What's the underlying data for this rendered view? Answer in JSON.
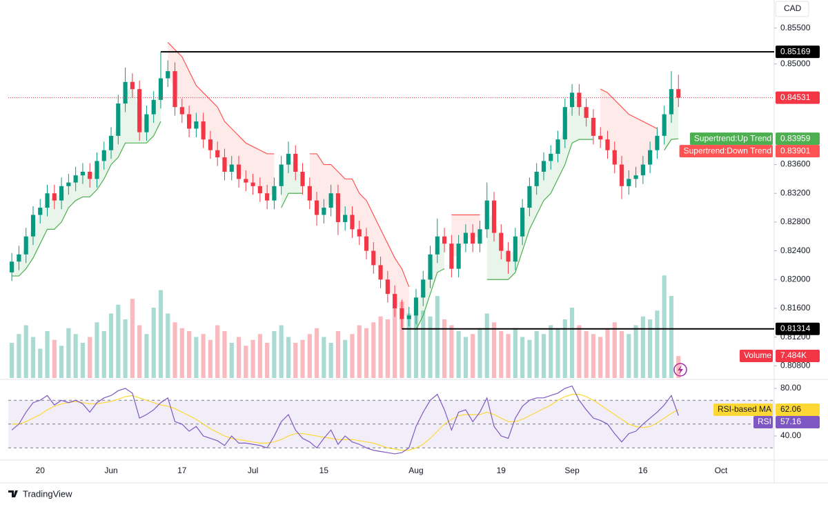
{
  "chart_data": {
    "type": "candlestick",
    "currency": "CAD",
    "footer": "TradingView",
    "up_color": "#089981",
    "down_color": "#f23645",
    "grid": false,
    "categories": [
      null,
      null,
      null,
      null,
      "20",
      null,
      null,
      null,
      null,
      null,
      null,
      null,
      null,
      null,
      "Jun",
      null,
      null,
      null,
      null,
      null,
      null,
      null,
      null,
      null,
      "17",
      null,
      null,
      null,
      null,
      null,
      null,
      null,
      null,
      null,
      "Jul",
      null,
      null,
      null,
      null,
      null,
      null,
      null,
      null,
      null,
      "15",
      null,
      null,
      null,
      null,
      null,
      null,
      null,
      null,
      null,
      null,
      null,
      null,
      "Aug",
      null,
      null,
      null,
      null,
      null,
      null,
      null,
      null,
      null,
      null,
      null,
      "19",
      null,
      null,
      null,
      null,
      null,
      null,
      null,
      null,
      null,
      "Sep",
      null,
      null,
      null,
      null,
      null,
      null,
      null,
      null,
      null,
      "16",
      null,
      null,
      null,
      null,
      null,
      null,
      null,
      null,
      null,
      null,
      "Oct",
      null,
      null,
      null,
      null,
      null,
      null,
      null
    ],
    "open": [
      0.821,
      0.8225,
      0.8235,
      0.826,
      0.829,
      0.83,
      0.832,
      0.831,
      0.833,
      0.8335,
      0.8345,
      0.835,
      0.834,
      0.8365,
      0.838,
      0.84,
      0.8445,
      0.8475,
      0.8465,
      0.8405,
      0.843,
      0.845,
      0.848,
      0.849,
      0.844,
      0.843,
      0.841,
      0.842,
      0.8395,
      0.838,
      0.837,
      0.835,
      0.836,
      0.834,
      0.8335,
      0.833,
      0.832,
      0.831,
      0.833,
      0.836,
      0.8375,
      0.835,
      0.833,
      0.831,
      0.829,
      0.83,
      0.832,
      0.828,
      0.829,
      0.827,
      0.826,
      0.824,
      0.822,
      0.82,
      0.818,
      0.816,
      0.8145,
      0.815,
      0.8175,
      0.82,
      0.8235,
      0.826,
      0.825,
      0.8215,
      0.825,
      0.8265,
      0.825,
      0.827,
      0.831,
      0.8265,
      0.824,
      0.8225,
      0.826,
      0.83,
      0.833,
      0.835,
      0.8365,
      0.8375,
      0.8395,
      0.844,
      0.846,
      0.844,
      0.8425,
      0.84,
      0.8395,
      0.838,
      0.836,
      0.833,
      0.834,
      0.8345,
      0.836,
      0.838,
      0.84,
      0.843,
      0.8465,
      null,
      null,
      null,
      null,
      null,
      null,
      null,
      null,
      null,
      null,
      null,
      null,
      null
    ],
    "high": [
      0.8237,
      0.8247,
      0.8272,
      0.8302,
      0.8312,
      0.8332,
      0.8332,
      0.8342,
      0.8347,
      0.8357,
      0.8362,
      0.8362,
      0.8377,
      0.8392,
      0.8412,
      0.8457,
      0.8495,
      0.8487,
      0.8477,
      0.8442,
      0.8462,
      0.85169,
      0.8505,
      0.8502,
      0.8452,
      0.8442,
      0.8432,
      0.8432,
      0.8407,
      0.8392,
      0.8382,
      0.8372,
      0.8372,
      0.8352,
      0.8347,
      0.8342,
      0.8332,
      0.8342,
      0.8372,
      0.8392,
      0.8387,
      0.8362,
      0.8342,
      0.8322,
      0.8312,
      0.8332,
      0.8332,
      0.8302,
      0.8302,
      0.8282,
      0.8272,
      0.8252,
      0.8232,
      0.8212,
      0.8192,
      0.8172,
      0.8162,
      0.8187,
      0.8212,
      0.8247,
      0.8285,
      0.8272,
      0.8262,
      0.8262,
      0.8277,
      0.8277,
      0.8282,
      0.8335,
      0.8322,
      0.8277,
      0.8252,
      0.8272,
      0.8312,
      0.8342,
      0.8362,
      0.8377,
      0.8387,
      0.8407,
      0.8452,
      0.8472,
      0.8472,
      0.8452,
      0.8437,
      0.8412,
      0.8407,
      0.8392,
      0.8372,
      0.8352,
      0.8357,
      0.8372,
      0.8392,
      0.8412,
      0.8442,
      0.849,
      0.8485,
      null,
      null,
      null,
      null,
      null,
      null,
      null,
      null,
      null,
      null,
      null,
      null,
      null
    ],
    "low": [
      0.8198,
      0.8213,
      0.8223,
      0.8248,
      0.8278,
      0.8288,
      0.8298,
      0.8298,
      0.8318,
      0.8323,
      0.8333,
      0.8328,
      0.8328,
      0.8353,
      0.8368,
      0.8388,
      0.8433,
      0.8453,
      0.8393,
      0.8393,
      0.8418,
      0.8438,
      0.8468,
      0.8428,
      0.8418,
      0.8398,
      0.8398,
      0.8383,
      0.8368,
      0.8358,
      0.8338,
      0.8338,
      0.8328,
      0.8323,
      0.8318,
      0.8308,
      0.8298,
      0.8298,
      0.8318,
      0.8348,
      0.8338,
      0.8318,
      0.8298,
      0.8275,
      0.8278,
      0.8288,
      0.8262,
      0.8268,
      0.8258,
      0.8248,
      0.8228,
      0.8208,
      0.8188,
      0.8168,
      0.8148,
      0.81314,
      0.8135,
      0.8138,
      0.8163,
      0.8188,
      0.8223,
      0.8238,
      0.8203,
      0.8203,
      0.8238,
      0.8238,
      0.8238,
      0.8258,
      0.8253,
      0.8228,
      0.8208,
      0.8213,
      0.8248,
      0.8288,
      0.8318,
      0.8338,
      0.8353,
      0.8363,
      0.8383,
      0.8428,
      0.8428,
      0.8413,
      0.8388,
      0.8383,
      0.8368,
      0.8348,
      0.8312,
      0.8318,
      0.8328,
      0.8333,
      0.8348,
      0.8368,
      0.8388,
      0.8418,
      0.844,
      null,
      null,
      null,
      null,
      null,
      null,
      null,
      null,
      null,
      null,
      null,
      null,
      null
    ],
    "close": [
      0.8225,
      0.8235,
      0.826,
      0.829,
      0.83,
      0.832,
      0.831,
      0.833,
      0.8335,
      0.8345,
      0.835,
      0.834,
      0.8365,
      0.838,
      0.84,
      0.8445,
      0.8475,
      0.8465,
      0.8405,
      0.843,
      0.845,
      0.848,
      0.849,
      0.844,
      0.843,
      0.841,
      0.842,
      0.8395,
      0.838,
      0.837,
      0.835,
      0.836,
      0.834,
      0.8335,
      0.833,
      0.832,
      0.831,
      0.833,
      0.836,
      0.8375,
      0.835,
      0.833,
      0.831,
      0.829,
      0.83,
      0.832,
      0.828,
      0.829,
      0.827,
      0.826,
      0.824,
      0.822,
      0.82,
      0.818,
      0.816,
      0.8145,
      0.815,
      0.8175,
      0.82,
      0.8235,
      0.826,
      0.825,
      0.8215,
      0.825,
      0.8265,
      0.825,
      0.827,
      0.831,
      0.8265,
      0.824,
      0.8225,
      0.826,
      0.83,
      0.833,
      0.835,
      0.8365,
      0.8375,
      0.8395,
      0.844,
      0.846,
      0.844,
      0.8425,
      0.84,
      0.8395,
      0.838,
      0.836,
      0.833,
      0.834,
      0.8345,
      0.836,
      0.838,
      0.84,
      0.843,
      0.8465,
      0.84531,
      null,
      null,
      null,
      null,
      null,
      null,
      null,
      null,
      null,
      null,
      null,
      null,
      null
    ],
    "ylim": [
      0.8063,
      0.8589
    ],
    "yticks": [
      {
        "value": 0.855,
        "label": "0.85500"
      },
      {
        "value": 0.85,
        "label": "0.85000"
      },
      {
        "value": 0.836,
        "label": "0.83600"
      },
      {
        "value": 0.832,
        "label": "0.83200"
      },
      {
        "value": 0.828,
        "label": "0.82800"
      },
      {
        "value": 0.824,
        "label": "0.82400"
      },
      {
        "value": 0.82,
        "label": "0.82000"
      },
      {
        "value": 0.816,
        "label": "0.81600"
      },
      {
        "value": 0.812,
        "label": "0.81200"
      },
      {
        "value": 0.808,
        "label": "0.80800"
      }
    ],
    "hlines": [
      0.85169,
      0.81314
    ],
    "supertrend": [
      {
        "name": "Supertrend:Up Trend",
        "color": "#4caf50",
        "last_value": 0.83959,
        "values": [
          0.8205,
          0.8205,
          0.8215,
          0.823,
          0.825,
          0.827,
          0.827,
          0.828,
          0.83,
          0.831,
          0.8315,
          0.8315,
          0.8325,
          0.834,
          0.836,
          0.837,
          0.839,
          0.839,
          0.839,
          0.839,
          0.84,
          0.842,
          null,
          null,
          null,
          null,
          null,
          null,
          null,
          null,
          null,
          null,
          null,
          null,
          null,
          null,
          null,
          null,
          0.83,
          0.832,
          0.832,
          0.832,
          null,
          null,
          null,
          null,
          null,
          null,
          null,
          null,
          null,
          null,
          null,
          null,
          null,
          null,
          null,
          0.813,
          0.815,
          0.818,
          0.821,
          0.8215,
          null,
          null,
          null,
          null,
          null,
          0.82,
          0.82,
          0.82,
          0.82,
          0.821,
          0.824,
          0.827,
          0.829,
          0.831,
          0.832,
          0.834,
          0.836,
          0.839,
          0.8395,
          0.8395,
          0.8395,
          null,
          null,
          null,
          null,
          null,
          null,
          null,
          null,
          null,
          0.838,
          0.8395,
          0.83959,
          null,
          null,
          null,
          null,
          null,
          null,
          null,
          null,
          null,
          null,
          null,
          null,
          null
        ]
      },
      {
        "name": "Supertrend:Down Trend",
        "color": "#ff5252",
        "last_value": 0.83901,
        "values": [
          null,
          null,
          null,
          null,
          null,
          null,
          null,
          null,
          null,
          null,
          null,
          null,
          null,
          null,
          null,
          null,
          null,
          null,
          null,
          null,
          null,
          null,
          0.853,
          0.852,
          0.851,
          0.849,
          0.847,
          0.846,
          0.845,
          0.844,
          0.842,
          0.841,
          0.84,
          0.839,
          0.8385,
          0.838,
          0.8375,
          0.8375,
          null,
          null,
          null,
          null,
          0.8375,
          0.8375,
          0.836,
          0.836,
          0.835,
          0.834,
          0.834,
          0.832,
          0.831,
          0.829,
          0.827,
          0.825,
          0.823,
          0.8215,
          0.819,
          null,
          null,
          null,
          null,
          null,
          0.829,
          0.829,
          0.829,
          0.829,
          0.829,
          null,
          null,
          null,
          null,
          null,
          null,
          null,
          null,
          null,
          null,
          null,
          null,
          null,
          null,
          null,
          null,
          0.8465,
          0.846,
          0.845,
          0.844,
          0.843,
          0.8425,
          0.842,
          0.8415,
          0.841,
          null,
          null,
          null,
          null,
          null,
          null,
          null,
          null,
          null,
          null,
          null,
          null,
          null,
          null,
          null,
          null
        ]
      }
    ],
    "volume": {
      "name": "Volume",
      "color": "#f23645",
      "ylim": [
        0,
        40000
      ],
      "values": [
        12000,
        15000,
        18000,
        14000,
        10000,
        16000,
        13000,
        11000,
        17000,
        15000,
        12000,
        14000,
        19000,
        16000,
        22000,
        25000,
        20000,
        27000,
        18000,
        15000,
        24000,
        30000,
        22000,
        19000,
        17000,
        16000,
        14000,
        15000,
        13000,
        18000,
        16000,
        12000,
        14000,
        11000,
        13000,
        15000,
        12000,
        16000,
        18000,
        14000,
        12000,
        13000,
        15000,
        17000,
        14000,
        12000,
        16000,
        13000,
        15000,
        18000,
        17000,
        19000,
        21000,
        20000,
        24000,
        26000,
        22000,
        25000,
        23000,
        21000,
        28000,
        20000,
        18000,
        16000,
        14000,
        15000,
        17000,
        22000,
        19000,
        16000,
        15000,
        17000,
        14000,
        13000,
        16000,
        15000,
        18000,
        17000,
        20000,
        24000,
        18000,
        16000,
        15000,
        14000,
        17000,
        19000,
        16000,
        15000,
        18000,
        21000,
        20000,
        23000,
        35000,
        28000,
        7484,
        null,
        null,
        null,
        null,
        null,
        null,
        null,
        null,
        null,
        null,
        null,
        null,
        null
      ],
      "value_labels": [
        null,
        null,
        null,
        null,
        null,
        null,
        null,
        null,
        null,
        null,
        null,
        null,
        null,
        null,
        null,
        null,
        null,
        null,
        null,
        null,
        null,
        null,
        null,
        null,
        null,
        null,
        null,
        null,
        null,
        null,
        null,
        null,
        null,
        null,
        null,
        null,
        null,
        null,
        null,
        null,
        null,
        null,
        null,
        null,
        null,
        null,
        null,
        null,
        null,
        null,
        null,
        null,
        null,
        null,
        null,
        null,
        null,
        null,
        null,
        null,
        null,
        null,
        null,
        null,
        null,
        null,
        null,
        null,
        null,
        null,
        null,
        null,
        null,
        null,
        null,
        null,
        null,
        null,
        null,
        null,
        null,
        null,
        null,
        null,
        null,
        null,
        null,
        null,
        null,
        null,
        null,
        null,
        null,
        null,
        "7.484K",
        null,
        null,
        null,
        null,
        null,
        null,
        null,
        null,
        null,
        null,
        null,
        null,
        null
      ]
    },
    "rsi": {
      "name": "RSI",
      "color": "#7e57c2",
      "ylim": [
        20.9,
        85.8
      ],
      "levels": [
        70,
        50,
        30
      ],
      "yticks": [
        {
          "value": 80,
          "label": "80.00"
        },
        {
          "value": 40,
          "label": "40.00"
        }
      ],
      "values": [
        45,
        50,
        60,
        68,
        70,
        74,
        66,
        70,
        68,
        70,
        67,
        60,
        68,
        72,
        74,
        78,
        80,
        76,
        55,
        58,
        62,
        68,
        72,
        52,
        50,
        44,
        48,
        40,
        38,
        36,
        32,
        40,
        34,
        34,
        33,
        32,
        30,
        40,
        52,
        58,
        45,
        38,
        35,
        30,
        38,
        45,
        33,
        40,
        35,
        33,
        30,
        28,
        27,
        26,
        25,
        26,
        30,
        48,
        60,
        70,
        75,
        62,
        45,
        60,
        62,
        52,
        60,
        72,
        48,
        40,
        38,
        55,
        65,
        70,
        72,
        72,
        74,
        76,
        80,
        82,
        70,
        62,
        55,
        53,
        50,
        42,
        35,
        42,
        44,
        50,
        55,
        60,
        66,
        74,
        57.16,
        null,
        null,
        null,
        null,
        null,
        null,
        null,
        null,
        null,
        null,
        null,
        null,
        null
      ],
      "ma": {
        "name": "RSI-based MA",
        "color": "#fdd835",
        "values": [
          50,
          50,
          52,
          55,
          58,
          62,
          65,
          67,
          68,
          69,
          68,
          67,
          67,
          68,
          69,
          71,
          73,
          74,
          72,
          70,
          68,
          66,
          65,
          63,
          60,
          57,
          54,
          50,
          46,
          43,
          40,
          38,
          37,
          36,
          35,
          34,
          34,
          35,
          37,
          40,
          42,
          42,
          41,
          40,
          39,
          38,
          37,
          37,
          37,
          36,
          35,
          34,
          32,
          30,
          29,
          28,
          28,
          30,
          33,
          38,
          44,
          50,
          54,
          57,
          58,
          58,
          58,
          60,
          58,
          55,
          52,
          52,
          54,
          57,
          60,
          63,
          66,
          70,
          73,
          75,
          75,
          73,
          70,
          66,
          62,
          58,
          54,
          50,
          48,
          47,
          48,
          51,
          55,
          59,
          62.06,
          null,
          null,
          null,
          null,
          null,
          null,
          null,
          null,
          null,
          null,
          null,
          null,
          null
        ]
      }
    }
  }
}
